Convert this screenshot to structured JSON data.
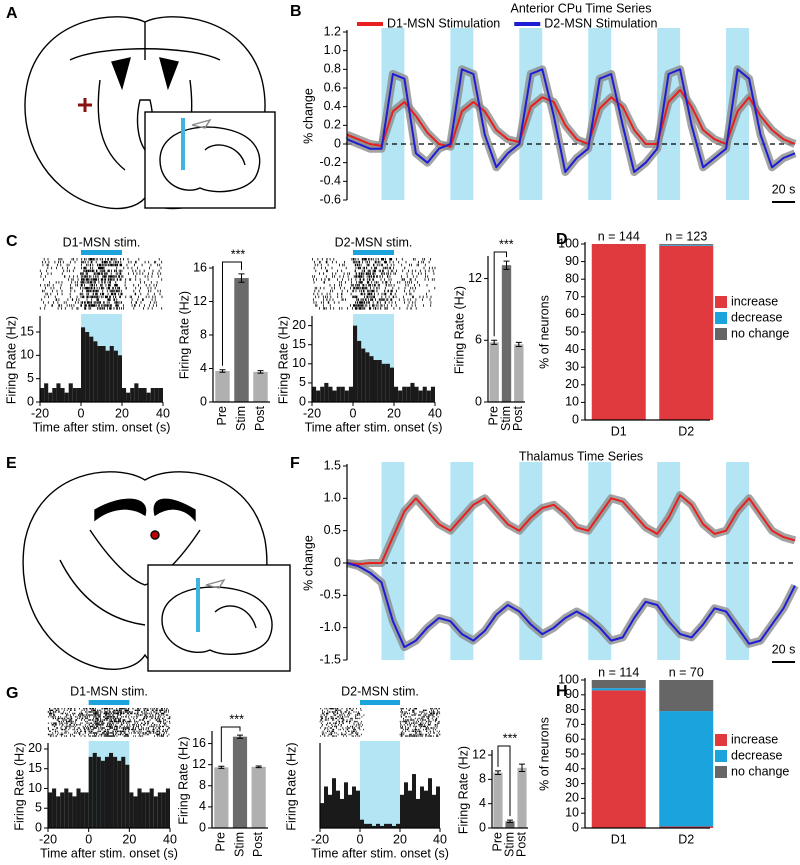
{
  "panel_labels": [
    "A",
    "B",
    "C",
    "D",
    "E",
    "F",
    "G",
    "H"
  ],
  "chart_data": [
    {
      "type": "line",
      "title": "Anterior CPu Time Series",
      "ylabel": "% change",
      "x": [
        0,
        10,
        20,
        30,
        40,
        50,
        60,
        70,
        80,
        90,
        100,
        110,
        120,
        130,
        140,
        150,
        160,
        170,
        180,
        190,
        200,
        210,
        220,
        230,
        240,
        250,
        260,
        270,
        280,
        290,
        300,
        310,
        320,
        330,
        340,
        350,
        360,
        370,
        380,
        390
      ],
      "xlim": [
        0,
        390
      ],
      "ylim": [
        -0.6,
        1.2
      ],
      "yticks": [
        1.2,
        {
          "value": 1,
          "label": "1.0"
        },
        0.8,
        0.6,
        0.4,
        0.2,
        0,
        -0.2,
        -0.4,
        -0.6
      ],
      "shaded": [
        [
          30,
          50
        ],
        [
          90,
          110
        ],
        [
          150,
          170
        ],
        [
          210,
          230
        ],
        [
          270,
          290
        ],
        [
          330,
          350
        ]
      ],
      "shade_color": "#b3e5f5",
      "hline": 0,
      "band_color": "#8c8c8c",
      "series": [
        {
          "name": "D1-MSN Stimulation",
          "color": "#e8201e",
          "values": [
            0.1,
            0.05,
            0,
            -0.02,
            0.35,
            0.45,
            0.3,
            0.12,
            0,
            -0.03,
            0.35,
            0.45,
            0.35,
            0.15,
            0.05,
            0.02,
            0.4,
            0.5,
            0.45,
            0.2,
            0.05,
            0,
            0.38,
            0.5,
            0.4,
            0.15,
            0,
            0,
            0.45,
            0.58,
            0.4,
            0.15,
            0.05,
            0,
            0.35,
            0.5,
            0.3,
            0.15,
            0.05,
            0
          ]
        },
        {
          "name": "D2-MSN Stimulation",
          "color": "#1d1dd6",
          "values": [
            0.05,
            0,
            -0.05,
            -0.05,
            0.75,
            0.7,
            -0.1,
            -0.2,
            -0.05,
            0,
            0.8,
            0.75,
            0.1,
            -0.25,
            -0.1,
            0,
            0.75,
            0.8,
            0.3,
            -0.3,
            -0.15,
            -0.05,
            0.7,
            0.75,
            0.2,
            -0.3,
            -0.2,
            -0.05,
            0.75,
            0.8,
            0.2,
            -0.25,
            -0.15,
            -0.05,
            0.8,
            0.7,
            0.1,
            -0.25,
            -0.15,
            -0.1
          ]
        }
      ],
      "scale_bar": {
        "value": 20,
        "label": "20 s"
      }
    },
    {
      "type": "histogram",
      "title": "D1-MSN stim.",
      "xlabel": "Time after stim. onset (s)",
      "ylabel": "Firing Rate (Hz)",
      "bins": [
        -20,
        -18,
        -16,
        -14,
        -12,
        -10,
        -8,
        -6,
        -4,
        -2,
        0,
        2,
        4,
        6,
        8,
        10,
        12,
        14,
        16,
        18,
        20,
        22,
        24,
        26,
        28,
        30,
        32,
        34,
        36,
        38,
        40
      ],
      "values": [
        3,
        4,
        2,
        3,
        4,
        3,
        2,
        4,
        3,
        3,
        16,
        15,
        14,
        13,
        12,
        12,
        11,
        12,
        11,
        10,
        3,
        2,
        3,
        4,
        3,
        3,
        2,
        3,
        3,
        3
      ],
      "color": "#1a1a1a",
      "xlim": [
        -20,
        40
      ],
      "xticks": [
        -20,
        0,
        20,
        40
      ],
      "ylim": [
        0,
        18
      ],
      "yticks": [
        0,
        5,
        10,
        15
      ],
      "shaded": [
        [
          0,
          20
        ]
      ],
      "shade_color": "#b3e5f5",
      "stim_color": "#1ca3dc"
    },
    {
      "type": "bar",
      "ylabel": "Firing Rate (Hz)",
      "categories": [
        "Pre",
        "Stim",
        "Post"
      ],
      "values": [
        3.7,
        14.8,
        3.6
      ],
      "errors": [
        0.15,
        0.5,
        0.15
      ],
      "colors": [
        "#b0b0b0",
        "#6b6b6b",
        "#b0b0b0"
      ],
      "ylim": [
        0,
        16
      ],
      "yticks": [
        0,
        4,
        8,
        12,
        16
      ],
      "annotation": "***"
    },
    {
      "type": "histogram",
      "title": "D2-MSN stim.",
      "xlabel": "Time after stim. onset (s)",
      "ylabel": "Firing Rate (Hz)",
      "bins": [
        -20,
        -18,
        -16,
        -14,
        -12,
        -10,
        -8,
        -6,
        -4,
        -2,
        0,
        2,
        4,
        6,
        8,
        10,
        12,
        14,
        16,
        18,
        20,
        22,
        24,
        26,
        28,
        30,
        32,
        34,
        36,
        38,
        40
      ],
      "values": [
        4,
        3,
        4,
        5,
        4,
        3,
        4,
        4,
        3,
        4,
        20,
        16,
        14,
        13,
        12,
        11,
        11,
        10,
        10,
        9,
        4,
        3,
        4,
        4,
        5,
        4,
        3,
        4,
        3,
        4
      ],
      "color": "#1a1a1a",
      "xlim": [
        -20,
        40
      ],
      "xticks": [
        -20,
        0,
        20,
        40
      ],
      "ylim": [
        0,
        22
      ],
      "yticks": [
        0,
        5,
        10,
        15,
        20
      ],
      "shaded": [
        [
          0,
          20
        ]
      ],
      "shade_color": "#b3e5f5",
      "stim_color": "#1ca3dc"
    },
    {
      "type": "bar",
      "ylabel": "Firing Rate (Hz)",
      "categories": [
        "Pre",
        "Stim",
        "Post"
      ],
      "values": [
        5.8,
        13.3,
        5.6
      ],
      "errors": [
        0.2,
        0.4,
        0.2
      ],
      "colors": [
        "#b0b0b0",
        "#6b6b6b",
        "#b0b0b0"
      ],
      "ylim": [
        0,
        14
      ],
      "yticks": [
        0,
        6,
        12
      ],
      "annotation": "***"
    },
    {
      "type": "stacked_bar",
      "ylabel": "% of neurons",
      "categories": [
        "D1",
        "D2"
      ],
      "annotations": [
        "n = 144",
        "n = 123"
      ],
      "series": [
        {
          "name": "increase",
          "color": "#e0393e",
          "values": [
            100,
            99
          ]
        },
        {
          "name": "decrease",
          "color": "#1aa3dd",
          "values": [
            0,
            0.5
          ]
        },
        {
          "name": "no change",
          "color": "#666666",
          "values": [
            0,
            0.5
          ]
        }
      ],
      "ylim": [
        0,
        100
      ],
      "yticks": [
        0,
        10,
        20,
        30,
        40,
        50,
        60,
        70,
        80,
        90,
        100
      ]
    },
    {
      "type": "line",
      "title": "Thalamus Time Series",
      "ylabel": "% change",
      "x": [
        0,
        10,
        20,
        30,
        40,
        50,
        60,
        70,
        80,
        90,
        100,
        110,
        120,
        130,
        140,
        150,
        160,
        170,
        180,
        190,
        200,
        210,
        220,
        230,
        240,
        250,
        260,
        270,
        280,
        290,
        300,
        310,
        320,
        330,
        340,
        350,
        360,
        370,
        380,
        390
      ],
      "xlim": [
        0,
        390
      ],
      "ylim": [
        -1.5,
        1.5
      ],
      "yticks": [
        1.5,
        {
          "value": 1,
          "label": "1.0"
        },
        0.5,
        0,
        -0.5,
        {
          "value": -1,
          "label": "-1.0"
        },
        -1.5
      ],
      "shaded": [
        [
          30,
          50
        ],
        [
          90,
          110
        ],
        [
          150,
          170
        ],
        [
          210,
          230
        ],
        [
          270,
          290
        ],
        [
          330,
          350
        ]
      ],
      "shade_color": "#b3e5f5",
      "hline": 0,
      "band_color": "#8c8c8c",
      "series": [
        {
          "color": "#e8201e",
          "values": [
            0,
            -0.02,
            0,
            0,
            0.4,
            0.8,
            1.0,
            0.8,
            0.6,
            0.5,
            0.7,
            0.9,
            1.0,
            0.8,
            0.6,
            0.5,
            0.7,
            0.85,
            0.9,
            0.75,
            0.55,
            0.5,
            0.75,
            1.0,
            0.95,
            0.75,
            0.55,
            0.45,
            0.7,
            1.05,
            0.9,
            0.6,
            0.45,
            0.5,
            0.8,
            1.0,
            0.75,
            0.5,
            0.4,
            0.35
          ]
        },
        {
          "color": "#1d1dd6",
          "values": [
            0,
            -0.05,
            -0.15,
            -0.3,
            -0.9,
            -1.3,
            -1.2,
            -1.0,
            -0.85,
            -0.9,
            -1.1,
            -1.2,
            -1.05,
            -0.8,
            -0.65,
            -0.75,
            -0.95,
            -1.1,
            -1.0,
            -0.85,
            -0.75,
            -0.85,
            -1.0,
            -1.2,
            -1.15,
            -0.85,
            -0.6,
            -0.65,
            -0.9,
            -1.1,
            -1.15,
            -0.95,
            -0.7,
            -0.75,
            -1.0,
            -1.25,
            -1.2,
            -0.95,
            -0.7,
            -0.35
          ]
        }
      ],
      "scale_bar": {
        "value": 20,
        "label": "20 s"
      }
    },
    {
      "type": "histogram",
      "title": "D1-MSN stim.",
      "xlabel": "Time after stim. onset (s)",
      "ylabel": "Firing Rate (Hz)",
      "bins": [
        -20,
        -18,
        -16,
        -14,
        -12,
        -10,
        -8,
        -6,
        -4,
        -2,
        0,
        2,
        4,
        6,
        8,
        10,
        12,
        14,
        16,
        18,
        20,
        22,
        24,
        26,
        28,
        30,
        32,
        34,
        36,
        38,
        40
      ],
      "values": [
        9,
        10,
        8,
        9,
        10,
        9,
        8,
        10,
        9,
        9,
        18,
        19,
        18,
        17,
        18,
        19,
        18,
        17,
        18,
        16,
        9,
        8,
        10,
        9,
        9,
        10,
        8,
        9,
        9,
        10
      ],
      "color": "#1a1a1a",
      "xlim": [
        -20,
        40
      ],
      "xticks": [
        -20,
        0,
        20,
        40
      ],
      "ylim": [
        0,
        21
      ],
      "yticks": [
        0,
        5,
        10,
        15,
        20
      ],
      "shaded": [
        [
          0,
          20
        ]
      ],
      "shade_color": "#b3e5f5",
      "stim_color": "#1ca3dc"
    },
    {
      "type": "bar",
      "ylabel": "Firing Rate (Hz)",
      "categories": [
        "Pre",
        "Stim",
        "Post"
      ],
      "values": [
        11.5,
        17.3,
        11.6
      ],
      "errors": [
        0.2,
        0.3,
        0.15
      ],
      "colors": [
        "#b0b0b0",
        "#6b6b6b",
        "#b0b0b0"
      ],
      "ylim": [
        0,
        18
      ],
      "yticks": [
        0,
        4,
        8,
        12,
        16
      ],
      "annotation": "***"
    },
    {
      "type": "histogram",
      "title": "D2-MSN stim.",
      "xlabel": "Time after stim. onset (s)",
      "ylabel": "Firing Rate (Hz)",
      "bins": [
        -20,
        -18,
        -16,
        -14,
        -12,
        -10,
        -8,
        -6,
        -4,
        -2,
        0,
        2,
        4,
        6,
        8,
        10,
        12,
        14,
        16,
        18,
        20,
        22,
        24,
        26,
        28,
        30,
        32,
        34,
        36,
        38,
        40
      ],
      "values": [
        6,
        10,
        8,
        12,
        9,
        7,
        11,
        8,
        10,
        9,
        2,
        1,
        1,
        0.5,
        1,
        0.5,
        1,
        1,
        0.5,
        1,
        8,
        11,
        9,
        13,
        7,
        10,
        9,
        12,
        8,
        10
      ],
      "color": "#1a1a1a",
      "xlim": [
        -20,
        40
      ],
      "xticks": [
        -20,
        0,
        20,
        40
      ],
      "ylim": [
        0,
        20
      ],
      "shaded": [
        [
          0,
          20
        ]
      ],
      "shade_color": "#b3e5f5",
      "stim_color": "#1ca3dc"
    },
    {
      "type": "bar",
      "ylabel": "Firing Rate (Hz)",
      "categories": [
        "Pre",
        "Stim",
        "Post"
      ],
      "values": [
        9.1,
        1.1,
        9.9
      ],
      "errors": [
        0.3,
        0.2,
        0.6
      ],
      "colors": [
        "#b0b0b0",
        "#6b6b6b",
        "#b0b0b0"
      ],
      "ylim": [
        0,
        12.5
      ],
      "yticks": [
        0,
        4,
        8,
        12
      ],
      "annotation": "***"
    },
    {
      "type": "stacked_bar",
      "ylabel": "% of neurons",
      "categories": [
        "D1",
        "D2"
      ],
      "annotations": [
        "n = 114",
        "n = 70"
      ],
      "series": [
        {
          "name": "increase",
          "color": "#e0393e",
          "values": [
            93,
            1
          ]
        },
        {
          "name": "decrease",
          "color": "#1aa3dd",
          "values": [
            1.5,
            78
          ]
        },
        {
          "name": "no change",
          "color": "#666666",
          "values": [
            5.5,
            21
          ]
        }
      ],
      "ylim": [
        0,
        100
      ],
      "yticks": [
        0,
        10,
        20,
        30,
        40,
        50,
        60,
        70,
        80,
        90,
        100
      ]
    }
  ]
}
